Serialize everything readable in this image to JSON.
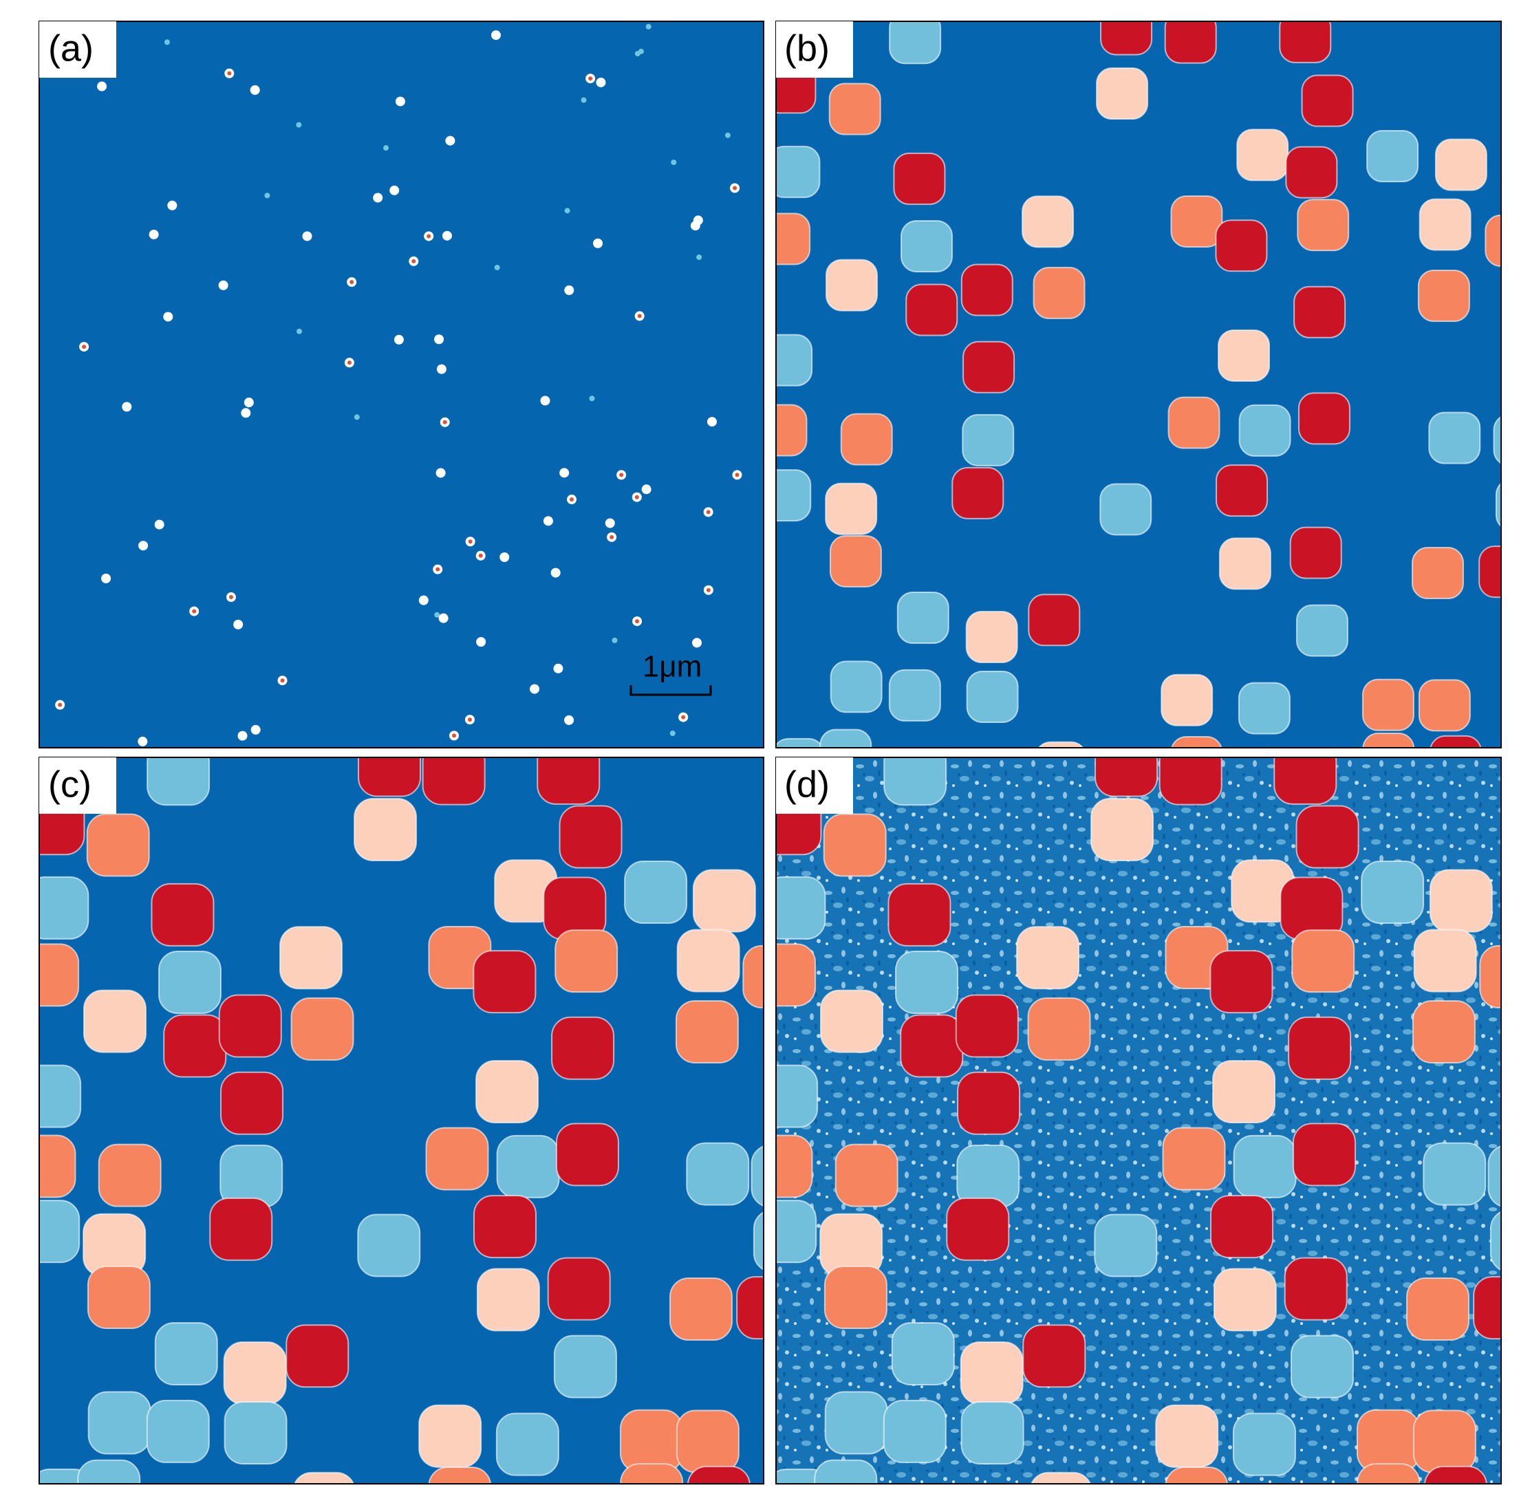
{
  "panels": [
    {
      "label": "(a)"
    },
    {
      "label": "(b)"
    },
    {
      "label": "(c)"
    },
    {
      "label": "(d)"
    }
  ],
  "scale_bar": {
    "label": "1μm"
  }
}
